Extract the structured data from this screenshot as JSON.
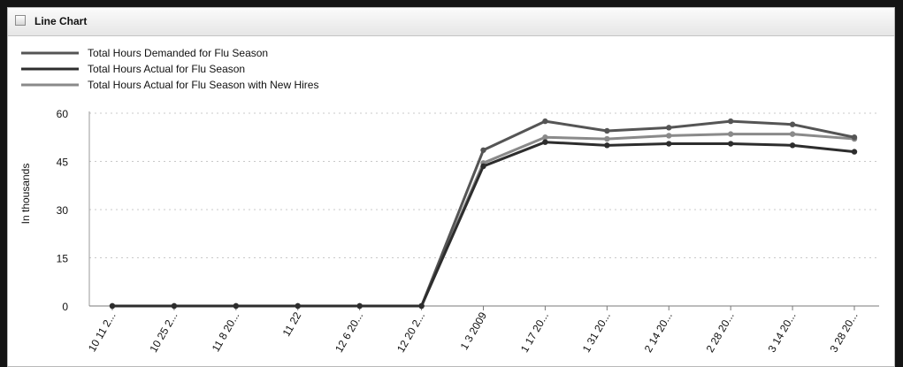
{
  "panel": {
    "title": "Line Chart"
  },
  "colors": {
    "background": "#141414",
    "panel": "#ffffff",
    "grid": "#c8c8c8"
  },
  "chart_data": {
    "type": "line",
    "ylabel": "In thousands",
    "ylim": [
      0,
      60
    ],
    "yticks": [
      0,
      15,
      30,
      45,
      60
    ],
    "grid": true,
    "legend_position": "top-left",
    "categories": [
      "10 11 2...",
      "10 25 2...",
      "11 8 20...",
      "11 22",
      "12 6 20...",
      "12 20 2...",
      "1 3 2009",
      "1 17 20...",
      "1 31 20...",
      "2 14 20...",
      "2 28 20...",
      "3 14 20...",
      "3 28 20..."
    ],
    "series": [
      {
        "name": "Total Hours Demanded for Flu Season",
        "color": "#555555",
        "values": [
          0,
          0,
          0,
          0,
          0,
          0,
          48.5,
          57.5,
          54.5,
          55.5,
          57.5,
          56.5,
          52.5
        ]
      },
      {
        "name": "Total Hours Actual for Flu Season",
        "color": "#2d2d2d",
        "values": [
          0,
          0,
          0,
          0,
          0,
          0,
          43.5,
          51,
          50,
          50.5,
          50.5,
          50,
          48
        ]
      },
      {
        "name": "Total Hours Actual for Flu Season with New Hires",
        "color": "#8a8a8a",
        "values": [
          0,
          0,
          0,
          0,
          0,
          0,
          44.5,
          52.5,
          52,
          53,
          53.5,
          53.5,
          52
        ]
      }
    ]
  }
}
